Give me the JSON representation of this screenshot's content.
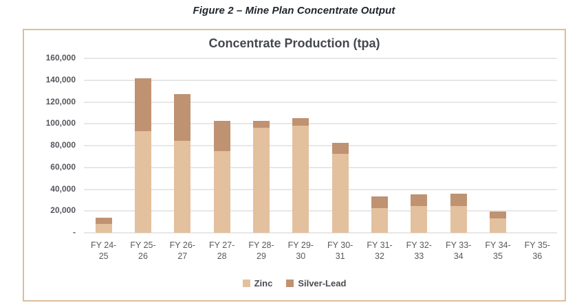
{
  "figure_caption": "Figure 2 – Mine Plan Concentrate Output",
  "chart_data": {
    "type": "bar",
    "stacked": true,
    "title": "Concentrate Production (tpa)",
    "categories": [
      "FY 24-25",
      "FY 25-26",
      "FY 26-27",
      "FY 27-28",
      "FY 28-29",
      "FY 29-30",
      "FY 30-31",
      "FY 31-32",
      "FY 32-33",
      "FY 33-34",
      "FY 34-35",
      "FY 35-36"
    ],
    "series": [
      {
        "name": "Zinc",
        "color": "#e3c09e",
        "values": [
          8500,
          93000,
          84500,
          75000,
          96500,
          98000,
          72500,
          23000,
          24500,
          24500,
          13000,
          0
        ]
      },
      {
        "name": "Silver-Lead",
        "color": "#bf9272",
        "values": [
          5500,
          49000,
          43000,
          27500,
          6500,
          7000,
          10000,
          10500,
          11000,
          11500,
          6500,
          0
        ]
      }
    ],
    "ylim": [
      0,
      160000
    ],
    "ytick_step": 20000,
    "ytick_labels": [
      "-",
      "20,000",
      "40,000",
      "60,000",
      "80,000",
      "100,000",
      "120,000",
      "140,000",
      "160,000"
    ],
    "xlabel": "",
    "ylabel": "",
    "grid": true,
    "legend_position": "bottom"
  },
  "colors": {
    "box_border": "#dcbd9b",
    "gridline": "#e7e7e7",
    "title_text": "#45474e",
    "caption_text": "#20252e",
    "axis_text": "#55565c"
  }
}
